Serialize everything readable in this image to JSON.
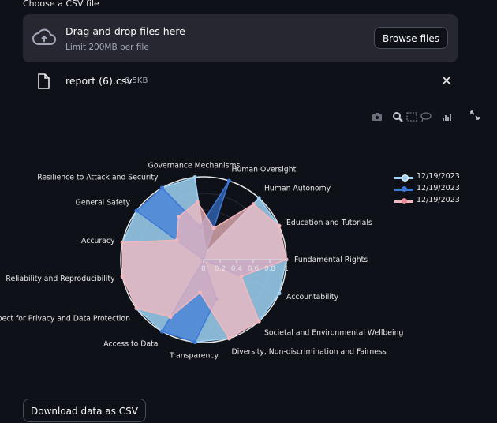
{
  "uploader": {
    "label": "Choose a CSV file",
    "drop_title": "Drag and drop files here",
    "drop_limit": "Limit 200MB per file",
    "browse_label": "Browse files"
  },
  "file": {
    "name": "report (6).csv",
    "size": "0.5KB"
  },
  "toolbar_icons": [
    "camera-icon",
    "zoom-icon",
    "box-select-icon",
    "lasso-icon",
    "plotly-logo-icon"
  ],
  "download_label": "Download data as CSV",
  "chart_data": {
    "type": "radar",
    "categories": [
      "Fundamental Rights",
      "Education and Tutorials",
      "Human Autonomy",
      "Human Oversight",
      "Governance Mechanisms",
      "Resilience to Attack and Security",
      "General Safety",
      "Accuracy",
      "Reliability and Reproducibility",
      "Respect for Privacy and Data Protection",
      "Access to Data",
      "Transparency",
      "Diversity, Non-discrimination and Fairness",
      "Societal and Environmental Wellbeing",
      "Accountability"
    ],
    "radial_ticks": [
      "0",
      "0.2",
      "0.4",
      "0.6",
      "0.8",
      "1"
    ],
    "radial_range": [
      0,
      1
    ],
    "legend_position": "top-right",
    "series": [
      {
        "name": "12/19/2023",
        "color": "#9fd3f5",
        "values": [
          1,
          1,
          1,
          0.1,
          1,
          1,
          1,
          1,
          1,
          1,
          1,
          1,
          1,
          1,
          1
        ]
      },
      {
        "name": "12/19/2023",
        "color": "#3b78d8",
        "values": [
          1,
          0,
          0,
          1,
          0.4,
          1,
          1,
          0,
          0,
          0,
          1,
          1,
          0.5,
          0,
          0.5
        ]
      },
      {
        "name": "12/19/2023",
        "color": "#f2b8bf",
        "values": [
          1,
          1,
          0.9,
          0.4,
          0.7,
          0.6,
          0.4,
          1,
          1,
          1,
          0.8,
          0.4,
          1,
          1,
          0.5
        ]
      }
    ]
  }
}
